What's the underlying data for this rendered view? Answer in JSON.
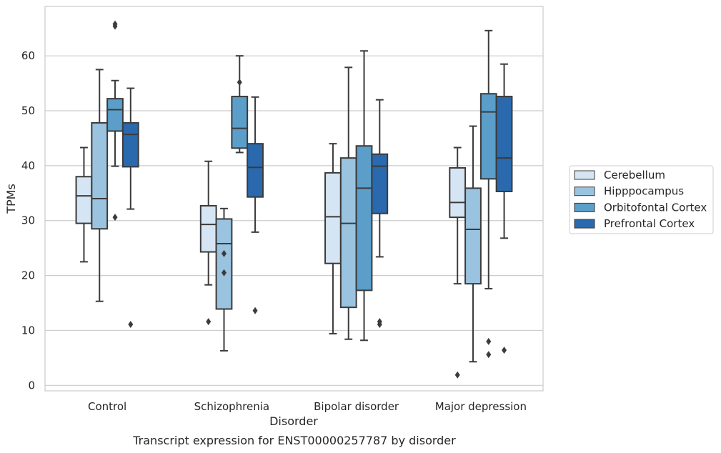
{
  "chart_data": {
    "type": "box",
    "title": "",
    "caption": "Transcript expression for ENST00000257787 by disorder",
    "xlabel": "Disorder",
    "ylabel": "TPMs",
    "ylim": [
      -1,
      69
    ],
    "yticks": [
      0,
      10,
      20,
      30,
      40,
      50,
      60
    ],
    "grid": "horizontal",
    "legend_position": "right",
    "categories": [
      "Control",
      "Schizophrenia",
      "Bipolar disorder",
      "Major depression"
    ],
    "series": [
      {
        "name": "Cerebellum",
        "color": "#d6e5f3",
        "boxes": [
          {
            "whislo": 22.5,
            "q1": 29.5,
            "med": 34.5,
            "q3": 38.0,
            "whishi": 43.3,
            "fliers": []
          },
          {
            "whislo": 18.3,
            "q1": 24.3,
            "med": 29.3,
            "q3": 32.7,
            "whishi": 40.8,
            "fliers": [
              11.6
            ]
          },
          {
            "whislo": 9.4,
            "q1": 22.2,
            "med": 30.7,
            "q3": 38.7,
            "whishi": 44.0,
            "fliers": []
          },
          {
            "whislo": 18.5,
            "q1": 30.6,
            "med": 33.3,
            "q3": 39.6,
            "whishi": 43.3,
            "fliers": [
              1.9
            ]
          }
        ]
      },
      {
        "name": "Hipppocampus",
        "color": "#9ac3df",
        "boxes": [
          {
            "whislo": 15.3,
            "q1": 28.5,
            "med": 34.0,
            "q3": 47.8,
            "whishi": 57.5,
            "fliers": []
          },
          {
            "whislo": 6.3,
            "q1": 13.9,
            "med": 25.8,
            "q3": 30.3,
            "whishi": 32.2,
            "fliers": [
              20.5,
              24.0
            ]
          },
          {
            "whislo": 8.4,
            "q1": 14.2,
            "med": 29.5,
            "q3": 41.4,
            "whishi": 57.9,
            "fliers": []
          },
          {
            "whislo": 4.3,
            "q1": 18.5,
            "med": 28.4,
            "q3": 35.9,
            "whishi": 47.2,
            "fliers": []
          }
        ]
      },
      {
        "name": "Orbitofontal Cortex",
        "color": "#5a9ec9",
        "boxes": [
          {
            "whislo": 39.9,
            "q1": 46.3,
            "med": 50.2,
            "q3": 52.2,
            "whishi": 55.5,
            "fliers": [
              30.6,
              65.4,
              65.8
            ]
          },
          {
            "whislo": 42.4,
            "q1": 43.2,
            "med": 46.8,
            "q3": 52.6,
            "whishi": 60.0,
            "fliers": [
              55.2
            ]
          },
          {
            "whislo": 8.2,
            "q1": 17.3,
            "med": 35.9,
            "q3": 43.6,
            "whishi": 60.9,
            "fliers": []
          },
          {
            "whislo": 17.6,
            "q1": 37.6,
            "med": 49.8,
            "q3": 53.1,
            "whishi": 64.6,
            "fliers": [
              5.6,
              8.0
            ]
          }
        ]
      },
      {
        "name": "Prefrontal Cortex",
        "color": "#2a69ad",
        "boxes": [
          {
            "whislo": 32.1,
            "q1": 39.8,
            "med": 45.7,
            "q3": 47.8,
            "whishi": 54.1,
            "fliers": [
              11.1
            ]
          },
          {
            "whislo": 27.9,
            "q1": 34.3,
            "med": 39.7,
            "q3": 44.0,
            "whishi": 52.5,
            "fliers": [
              13.6
            ]
          },
          {
            "whislo": 23.4,
            "q1": 31.3,
            "med": 39.9,
            "q3": 42.1,
            "whishi": 52.0,
            "fliers": [
              11.1,
              11.6
            ]
          },
          {
            "whislo": 26.8,
            "q1": 35.3,
            "med": 41.4,
            "q3": 52.6,
            "whishi": 58.5,
            "fliers": [
              6.4
            ]
          }
        ]
      }
    ]
  }
}
